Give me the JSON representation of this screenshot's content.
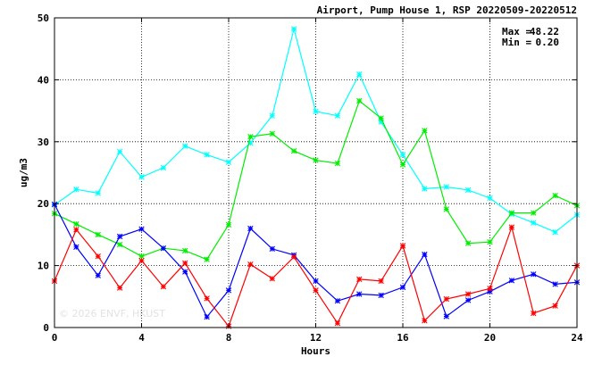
{
  "chart_data": {
    "type": "line",
    "title": "Airport, Pump House 1, RSP 20220509-20220512",
    "xlabel": "Hours",
    "ylabel": "ug/m3",
    "xlim": [
      0,
      24
    ],
    "ylim": [
      0,
      50
    ],
    "xticks": [
      0,
      4,
      8,
      12,
      16,
      20,
      24
    ],
    "yticks": [
      0,
      10,
      20,
      30,
      40,
      50
    ],
    "grid": true,
    "stats": {
      "max_label": "Max =",
      "max_value": "48.22",
      "min_label": "Min =",
      "min_value": "0.20"
    },
    "watermark": "© 2026 ENVF, HKUST",
    "series": [
      {
        "color": "#00ffff",
        "marker": "x-star",
        "x": [
          0,
          1,
          2,
          3,
          4,
          5,
          6,
          7,
          8,
          9,
          10,
          11,
          12,
          13,
          14,
          15,
          16,
          17,
          18,
          19,
          20,
          21,
          22,
          23,
          24
        ],
        "values": [
          19.8,
          22.3,
          21.7,
          28.4,
          24.3,
          25.8,
          29.3,
          27.9,
          26.7,
          29.8,
          34.2,
          48.2,
          34.9,
          34.2,
          40.9,
          33.2,
          27.9,
          22.4,
          22.7,
          22.2,
          20.9,
          18.3,
          16.9,
          15.4,
          18.2
        ]
      },
      {
        "color": "#00ee00",
        "marker": "x-star",
        "x": [
          0,
          1,
          2,
          3,
          4,
          5,
          6,
          7,
          8,
          9,
          10,
          11,
          12,
          13,
          14,
          15,
          16,
          17,
          18,
          19,
          20,
          21,
          22,
          23,
          24
        ],
        "values": [
          18.4,
          16.7,
          15.0,
          13.4,
          11.5,
          12.8,
          12.4,
          11.0,
          16.6,
          30.8,
          31.3,
          28.5,
          27.0,
          26.5,
          36.6,
          33.8,
          26.3,
          31.8,
          19.1,
          13.6,
          13.8,
          18.5,
          18.5,
          21.3,
          19.7
        ]
      },
      {
        "color": "#0000ff",
        "marker": "x-star",
        "x": [
          0,
          1,
          2,
          3,
          4,
          5,
          6,
          7,
          8,
          9,
          10,
          11,
          12,
          13,
          14,
          15,
          16,
          17,
          18,
          19,
          20,
          21,
          22,
          23,
          24
        ],
        "values": [
          19.9,
          13.0,
          8.4,
          14.7,
          15.9,
          12.8,
          9.0,
          1.7,
          6.0,
          16.0,
          12.7,
          11.7,
          7.5,
          4.3,
          5.4,
          5.2,
          6.5,
          11.8,
          1.8,
          4.4,
          5.8,
          7.6,
          8.6,
          7.0,
          7.3
        ]
      },
      {
        "color": "#ff0000",
        "marker": "x-star",
        "x": [
          0,
          1,
          2,
          3,
          4,
          5,
          6,
          7,
          8,
          9,
          10,
          11,
          12,
          13,
          14,
          15,
          16,
          17,
          18,
          19,
          20,
          21,
          22,
          23,
          24
        ],
        "values": [
          7.5,
          15.8,
          11.5,
          6.4,
          10.8,
          6.6,
          10.4,
          4.7,
          0.2,
          10.2,
          7.9,
          11.4,
          6.0,
          0.7,
          7.8,
          7.5,
          13.2,
          1.1,
          4.6,
          5.4,
          6.3,
          16.2,
          2.3,
          3.5,
          10.0
        ]
      }
    ]
  }
}
